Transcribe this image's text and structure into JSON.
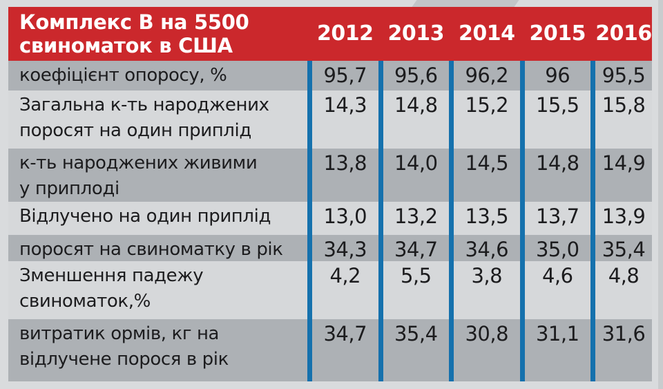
{
  "header": {
    "title_line1": "Комплекс В на 5500",
    "title_line2": "свиноматок в США",
    "years": [
      "2012",
      "2013",
      "2014",
      "2015",
      "2016"
    ],
    "background": "#cb282c",
    "text_color": "#ffffff"
  },
  "table": {
    "divider_color": "#1571ad",
    "row_dark_color": "#adb1b5",
    "row_light_color": "#d6d8da",
    "rows": [
      {
        "label": "коефіцієнт опоросу, %",
        "values": [
          "95,7",
          "95,6",
          "96,2",
          "96",
          "95,5"
        ]
      },
      {
        "label": "Загальна к-ть народжених\nпоросят на один приплід",
        "values": [
          "14,3",
          "14,8",
          "15,2",
          "15,5",
          "15,8"
        ]
      },
      {
        "label": "к-ть народжених живими\nу приплоді",
        "values": [
          "13,8",
          "14,0",
          "14,5",
          "14,8",
          "14,9"
        ]
      },
      {
        "label": "Відлучено на один приплід",
        "values": [
          "13,0",
          "13,2",
          "13,5",
          "13,7",
          "13,9"
        ]
      },
      {
        "label": "поросят на свиноматку в рік",
        "values": [
          "34,3",
          "34,7",
          "34,6",
          "35,0",
          "35,4"
        ]
      },
      {
        "label": "Зменшення падежу\nсвиноматок,%",
        "values": [
          "4,2",
          "5,5",
          "3,8",
          "4,6",
          "4,8"
        ]
      },
      {
        "label": "витратик ормів, кг на\nвідлучене порося в рік",
        "values": [
          "34,7",
          "35,4",
          "30,8",
          "31,1",
          "31,6"
        ]
      }
    ]
  },
  "chart_data": {
    "type": "table",
    "title": "Комплекс В на 5500 свиноматок в США",
    "columns": [
      "2012",
      "2013",
      "2014",
      "2015",
      "2016"
    ],
    "rows": [
      {
        "label": "коефіцієнт опоросу, %",
        "values": [
          95.7,
          95.6,
          96.2,
          96,
          95.5
        ]
      },
      {
        "label": "Загальна к-ть народжених поросят на один приплід",
        "values": [
          14.3,
          14.8,
          15.2,
          15.5,
          15.8
        ]
      },
      {
        "label": "к-ть народжених живими у приплоді",
        "values": [
          13.8,
          14.0,
          14.5,
          14.8,
          14.9
        ]
      },
      {
        "label": "Відлучено на один приплід",
        "values": [
          13.0,
          13.2,
          13.5,
          13.7,
          13.9
        ]
      },
      {
        "label": "поросят на свиноматку в рік",
        "values": [
          34.3,
          34.7,
          34.6,
          35.0,
          35.4
        ]
      },
      {
        "label": "Зменшення падежу свиноматок,%",
        "values": [
          4.2,
          5.5,
          3.8,
          4.6,
          4.8
        ]
      },
      {
        "label": "витратик ормів, кг на відлучене порося в рік",
        "values": [
          34.7,
          35.4,
          30.8,
          31.1,
          31.6
        ]
      }
    ]
  }
}
